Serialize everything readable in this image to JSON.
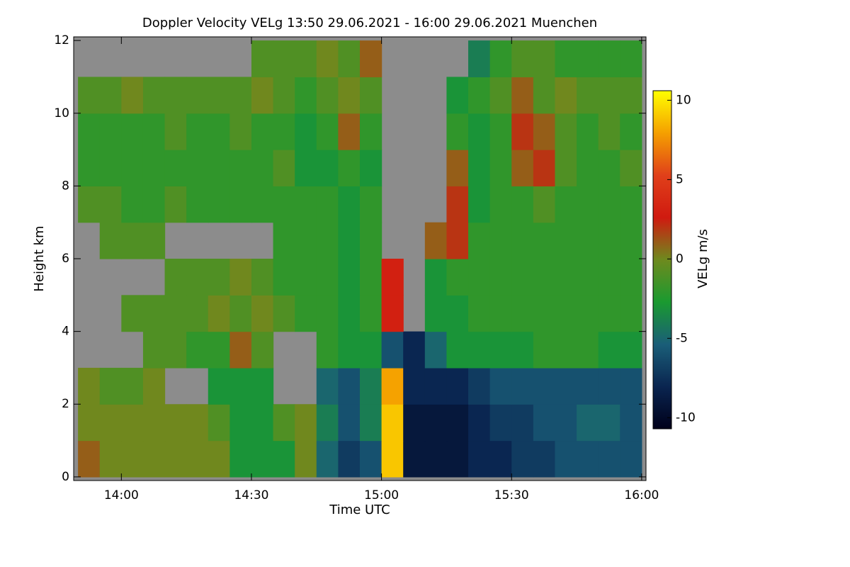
{
  "chart_data": {
    "type": "heatmap",
    "title": "Doppler Velocity VELg   13:50 29.06.2021 - 16:00 29.06.2021 Muenchen",
    "x_label": "Time UTC",
    "y_label": "Height km",
    "colorbar_label": "VELg m/s",
    "xbins": [
      830,
      835,
      840,
      845,
      850,
      855,
      860,
      865,
      870,
      875,
      880,
      885,
      890,
      895,
      900,
      905,
      910,
      915,
      920,
      925,
      930,
      935,
      940,
      945,
      950,
      955,
      960
    ],
    "ybins": [
      0,
      1,
      2,
      3,
      4,
      5,
      6,
      7,
      8,
      9,
      10,
      11,
      12
    ],
    "values": [
      [
        1,
        0,
        0,
        0,
        0,
        0,
        0,
        -3,
        -3,
        -3,
        0,
        -5,
        -7,
        -6,
        9,
        -9,
        -9,
        -9,
        -8,
        -8,
        -7,
        -7,
        -6,
        -6,
        -6,
        -6
      ],
      [
        0,
        0,
        0,
        0,
        0,
        0,
        -1,
        -3,
        -3,
        -1,
        0,
        -4,
        -6,
        -4,
        9,
        -9,
        -9,
        -9,
        -8,
        -7,
        -7,
        -6,
        -6,
        -5,
        -5,
        -6
      ],
      [
        0,
        -1,
        -1,
        0,
        null,
        null,
        -3,
        -3,
        -3,
        null,
        null,
        -5,
        -6,
        -4,
        8,
        -8,
        -8,
        -8,
        -7,
        -6,
        -6,
        -6,
        -6,
        -6,
        -6,
        -6
      ],
      [
        null,
        null,
        null,
        -1,
        -1,
        -2,
        -2,
        1,
        -1,
        null,
        null,
        -2,
        -3,
        -3,
        -6,
        -8,
        -5,
        -3,
        -3,
        -3,
        -3,
        -2,
        -2,
        -2,
        -3,
        -3
      ],
      [
        null,
        null,
        -1,
        -1,
        -1,
        -1,
        0,
        -1,
        0,
        -1,
        -2,
        -2,
        -3,
        -2,
        3,
        null,
        -3,
        -3,
        -2,
        -2,
        -2,
        -2,
        -2,
        -2,
        -2,
        -2
      ],
      [
        null,
        null,
        null,
        null,
        -1,
        -1,
        -1,
        0,
        -1,
        -2,
        -2,
        -2,
        -3,
        -2,
        3,
        null,
        -3,
        -2,
        -2,
        -2,
        -2,
        -2,
        -2,
        -2,
        -2,
        -2
      ],
      [
        null,
        -1,
        -1,
        -1,
        null,
        null,
        null,
        null,
        null,
        -2,
        -2,
        -2,
        -3,
        -2,
        null,
        null,
        1,
        2,
        -2,
        -2,
        -2,
        -2,
        -2,
        -2,
        -2,
        -2
      ],
      [
        -1,
        -1,
        -2,
        -2,
        -1,
        -2,
        -2,
        -2,
        -2,
        -2,
        -2,
        -2,
        -3,
        -2,
        null,
        null,
        null,
        2,
        -3,
        -2,
        -2,
        -1,
        -2,
        -2,
        -2,
        -2
      ],
      [
        -2,
        -2,
        -2,
        -2,
        -2,
        -2,
        -2,
        -2,
        -2,
        -1,
        -3,
        -3,
        -2,
        -3,
        null,
        null,
        null,
        1,
        -3,
        -2,
        1,
        2,
        -1,
        -2,
        -2,
        -1
      ],
      [
        -2,
        -2,
        -2,
        -2,
        -1,
        -2,
        -2,
        -1,
        -2,
        -2,
        -3,
        -2,
        1,
        -2,
        null,
        null,
        null,
        -2,
        -3,
        -2,
        2,
        1,
        -1,
        -2,
        -1,
        -2
      ],
      [
        -1,
        -1,
        0,
        -1,
        -1,
        -1,
        -1,
        -1,
        0,
        -1,
        -2,
        -1,
        0,
        -1,
        null,
        null,
        null,
        -3,
        -2,
        -1,
        1,
        -1,
        0,
        -1,
        -1,
        -1
      ],
      [
        null,
        null,
        null,
        null,
        null,
        null,
        null,
        null,
        -1,
        -1,
        -1,
        0,
        -1,
        1,
        null,
        null,
        null,
        null,
        -4,
        -2,
        -1,
        -1,
        -2,
        -2,
        -2,
        -2
      ]
    ],
    "missing_color": "#8c8c8c",
    "colormap": [
      "#00001a",
      "#0a2550",
      "#1a5e78",
      "#1a9a30",
      "#6e8a1e",
      "#d01a10",
      "#e0401a",
      "#f5a000",
      "#ffff00"
    ],
    "xlim": [
      829,
      961
    ],
    "ylim": [
      -0.1,
      12.1
    ],
    "clim": [
      -10.7,
      10.6
    ],
    "xticks": [
      {
        "value": 840,
        "label": "14:00"
      },
      {
        "value": 870,
        "label": "14:30"
      },
      {
        "value": 900,
        "label": "15:00"
      },
      {
        "value": 930,
        "label": "15:30"
      },
      {
        "value": 960,
        "label": "16:00"
      }
    ],
    "yticks": [
      0,
      2,
      4,
      6,
      8,
      10,
      12
    ],
    "cticks": [
      -10,
      -5,
      0,
      5,
      10
    ]
  }
}
